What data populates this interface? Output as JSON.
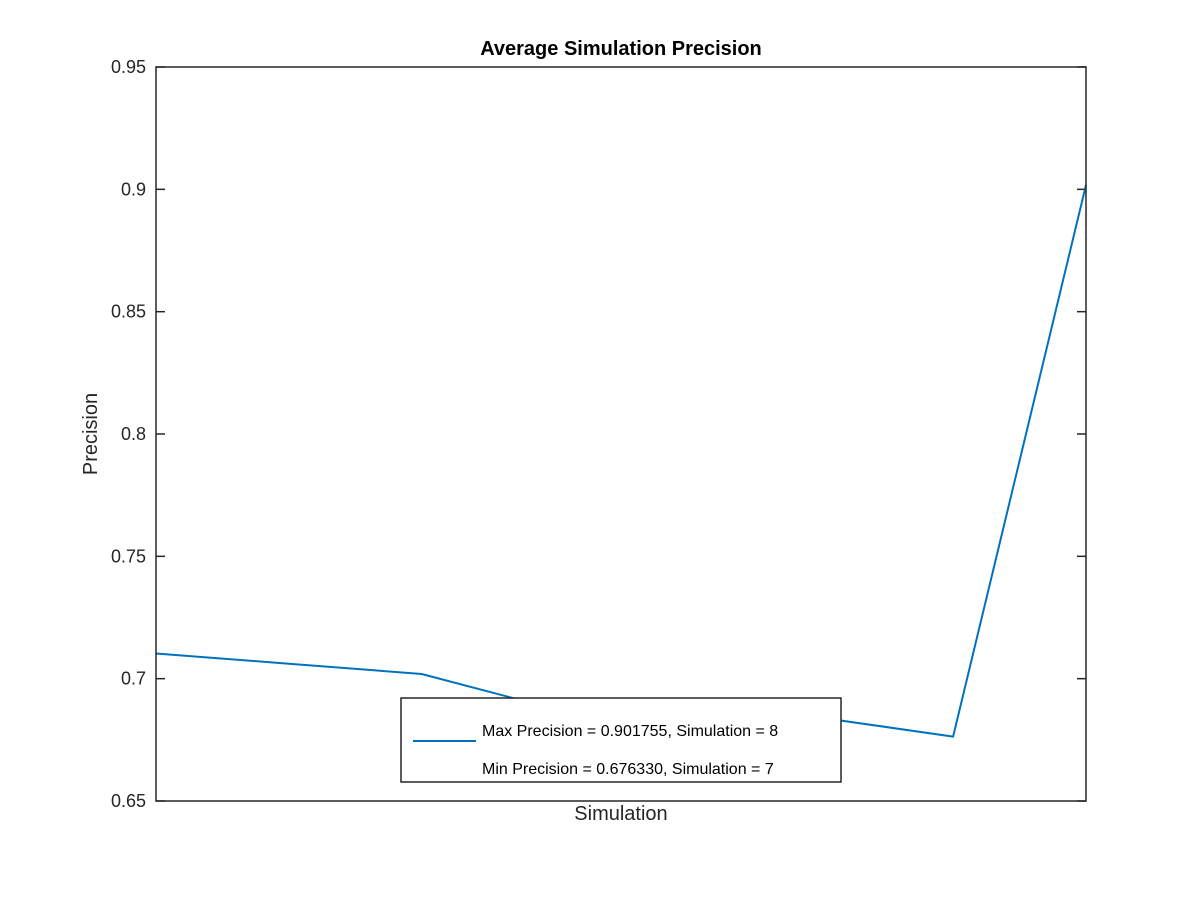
{
  "chart_data": {
    "type": "line",
    "title": "Average Simulation Precision",
    "xlabel": "Simulation",
    "ylabel": "Precision",
    "x": [
      1,
      2,
      3,
      4,
      5,
      6,
      7,
      8
    ],
    "series": [
      {
        "name": "Max Precision = 0.901755, Simulation = 8",
        "values": [
          0.7103,
          0.7061,
          0.7019,
          0.6876,
          0.6851,
          0.6841,
          0.67633,
          0.901755
        ]
      }
    ],
    "legend_entries": [
      "Max Precision = 0.901755, Simulation = 8",
      "Min Precision = 0.676330, Simulation = 7"
    ],
    "xlim": [
      1,
      8
    ],
    "ylim": [
      0.65,
      0.95
    ],
    "yticks": [
      0.65,
      0.7,
      0.75,
      0.8,
      0.85,
      0.9,
      0.95
    ],
    "ytick_labels": [
      "0.65",
      "0.7",
      "0.75",
      "0.8",
      "0.85",
      "0.9",
      "0.95"
    ],
    "xticks_shown": false,
    "grid": false,
    "legend_position": "bottom-center",
    "colors": {
      "line": "#0072BD",
      "axes": "#262626",
      "background": "#ffffff"
    }
  }
}
